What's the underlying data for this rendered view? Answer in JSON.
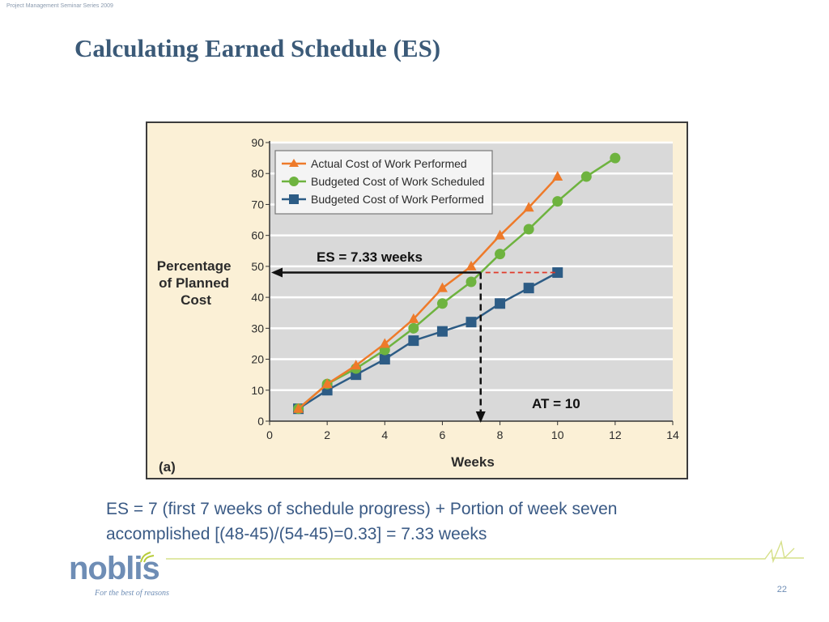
{
  "header": {
    "series_label": "Project Management Seminar Series 2009",
    "title": "Calculating Earned Schedule (ES)"
  },
  "chart_data": {
    "type": "line",
    "panel_label": "(a)",
    "xlabel": "Weeks",
    "ylabel": "Percentage of Planned Cost",
    "xlim": [
      0,
      14
    ],
    "ylim": [
      0,
      90
    ],
    "x_ticks": [
      0,
      2,
      4,
      6,
      8,
      10,
      12,
      14
    ],
    "y_ticks": [
      0,
      10,
      20,
      30,
      40,
      50,
      60,
      70,
      80,
      90
    ],
    "grid": "horizontal",
    "legend_position": "top-left",
    "series": [
      {
        "name": "Actual Cost of Work Performed",
        "marker": "triangle",
        "color": "#ee7a2a",
        "x": [
          1,
          2,
          3,
          4,
          5,
          6,
          7,
          8,
          9,
          10
        ],
        "y": [
          4,
          12,
          18,
          25,
          33,
          43,
          50,
          60,
          69,
          79
        ]
      },
      {
        "name": "Budgeted Cost of Work Scheduled",
        "marker": "circle",
        "color": "#6eb33f",
        "x": [
          1,
          2,
          3,
          4,
          5,
          6,
          7,
          8,
          9,
          10,
          11,
          12
        ],
        "y": [
          4,
          12,
          17,
          23,
          30,
          38,
          45,
          54,
          62,
          71,
          79,
          85
        ]
      },
      {
        "name": "Budgeted Cost of Work Performed",
        "marker": "square",
        "color": "#2d5c85",
        "x": [
          1,
          2,
          3,
          4,
          5,
          6,
          7,
          8,
          9,
          10
        ],
        "y": [
          4,
          10,
          15,
          20,
          26,
          29,
          32,
          38,
          43,
          48
        ]
      }
    ],
    "annotations": {
      "es_label": "ES = 7.33 weeks",
      "es_value": 7.33,
      "es_level": 48,
      "at_label": "AT = 10"
    }
  },
  "caption": {
    "line1": "ES = 7 (first 7 weeks of schedule progress) + Portion of week seven",
    "line2": "accomplished [(48-45)/(54-45)=0.33] = 7.33 weeks"
  },
  "footer": {
    "logo_text": "noblis",
    "tagline": "For the best of reasons",
    "page_number": "22"
  },
  "colors": {
    "title": "#3b5a78",
    "caption": "#3a5a85",
    "plot_background": "#d9d9d9",
    "frame_background": "#fbf0d6",
    "dashed_marker": "#e03a2a"
  }
}
